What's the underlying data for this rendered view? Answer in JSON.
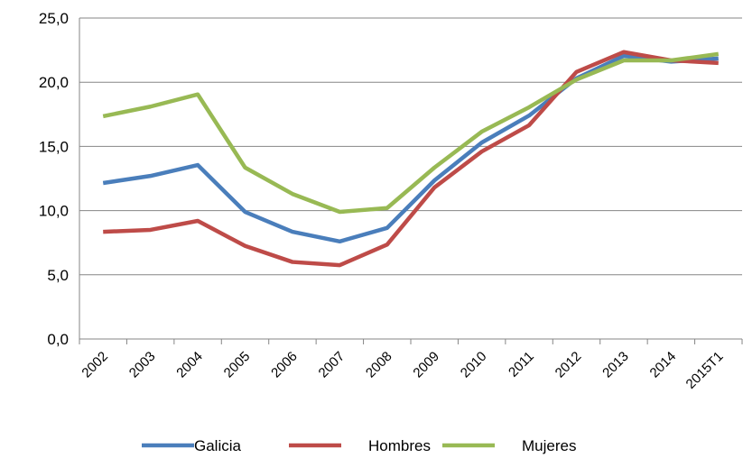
{
  "chart_data": {
    "type": "line",
    "categories": [
      "2002",
      "2003",
      "2004",
      "2005",
      "2006",
      "2007",
      "2008",
      "2009",
      "2010",
      "2011",
      "2012",
      "2013",
      "2014",
      "2015T1"
    ],
    "series": [
      {
        "name": "Galicia",
        "color": "#4a7ebb",
        "values": [
          12.15,
          12.7,
          13.55,
          9.9,
          8.35,
          7.6,
          8.65,
          12.35,
          15.3,
          17.4,
          20.3,
          22.05,
          21.6,
          21.85
        ]
      },
      {
        "name": "Hombres",
        "color": "#be4b48",
        "values": [
          8.35,
          8.5,
          9.2,
          7.25,
          6.0,
          5.75,
          7.35,
          11.8,
          14.6,
          16.65,
          20.8,
          22.35,
          21.7,
          21.5
        ]
      },
      {
        "name": "Mujeres",
        "color": "#98b954",
        "values": [
          17.35,
          18.1,
          19.05,
          13.35,
          11.3,
          9.9,
          10.2,
          13.35,
          16.15,
          18.05,
          20.2,
          21.7,
          21.7,
          22.2
        ]
      }
    ],
    "ylim": [
      0,
      25
    ],
    "yticks": [
      {
        "value": 0,
        "label": "0,0"
      },
      {
        "value": 5,
        "label": "5,0"
      },
      {
        "value": 10,
        "label": "10,0"
      },
      {
        "value": 15,
        "label": "15,0"
      },
      {
        "value": 20,
        "label": "20,0"
      },
      {
        "value": 25,
        "label": "25,0"
      }
    ],
    "grid": true,
    "legend": "bottom"
  }
}
